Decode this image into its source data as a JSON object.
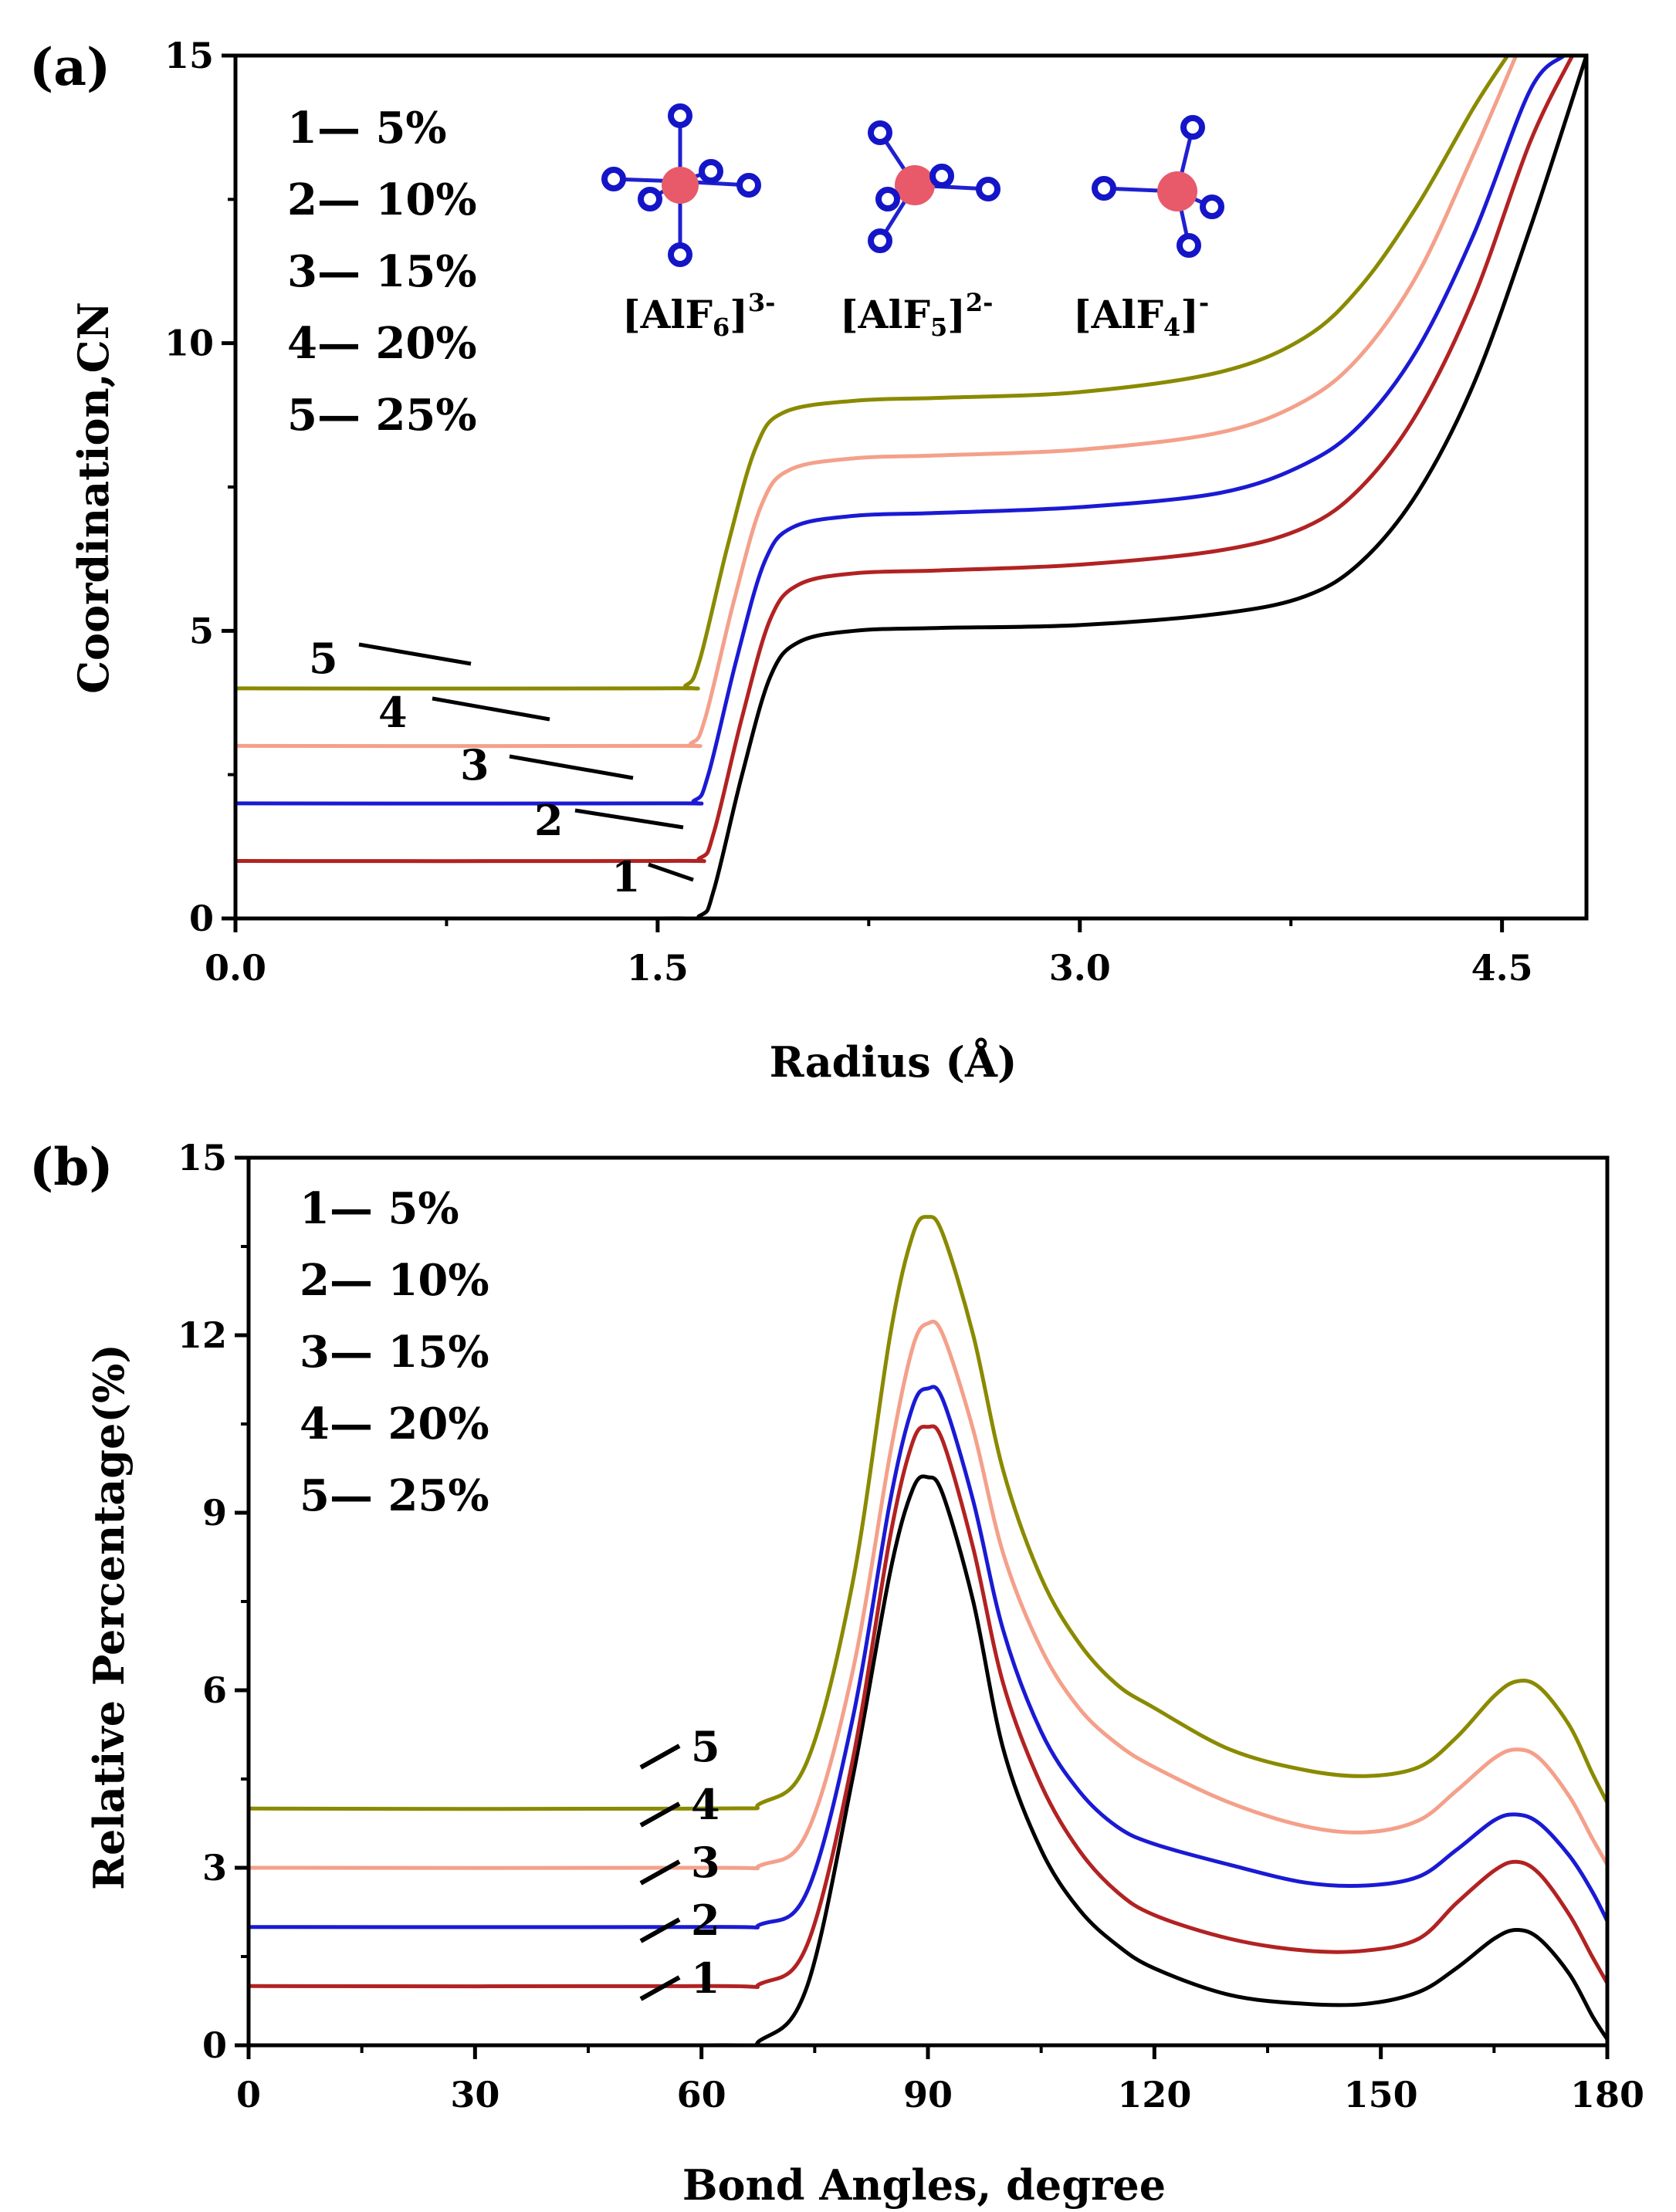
{
  "chart_data": [
    {
      "type": "line",
      "panel": "(a)",
      "xlabel": "Radius (Å)",
      "ylabel": "Coordination,CN",
      "xlim": [
        0,
        4.8
      ],
      "ylim": [
        0,
        15
      ],
      "xticks": [
        "0.0",
        "1.5",
        "3.0",
        "4.5"
      ],
      "xtick_values": [
        0,
        1.5,
        3.0,
        4.5
      ],
      "yticks": [
        "0",
        "5",
        "10",
        "15"
      ],
      "ytick_values": [
        0,
        5,
        10,
        15
      ],
      "legend": [
        "1— 5%",
        "2— 10%",
        "3— 15%",
        "4— 20%",
        "5— 25%"
      ],
      "curve_labels": [
        "1",
        "2",
        "3",
        "4",
        "5"
      ],
      "species": [
        {
          "pre": "[AlF",
          "sub": "6",
          "mid": "]",
          "sup": "3-"
        },
        {
          "pre": "[AlF",
          "sub": "5",
          "mid": "]",
          "sup": "2-"
        },
        {
          "pre": "[AlF",
          "sub": "4",
          "mid": "]",
          "sup": "-"
        }
      ],
      "series": [
        {
          "name": "5%",
          "color": "#000000",
          "offset": 0,
          "x": [
            0,
            1.5,
            1.65,
            1.7,
            1.8,
            1.9,
            2.0,
            2.2,
            2.5,
            3.0,
            3.5,
            3.8,
            4.0,
            4.2,
            4.4,
            4.6,
            4.8
          ],
          "y": [
            0,
            0,
            0.05,
            0.5,
            2.5,
            4.2,
            4.8,
            5.0,
            5.05,
            5.1,
            5.3,
            5.6,
            6.2,
            7.4,
            9.3,
            12.0,
            15.0
          ]
        },
        {
          "name": "10%",
          "color": "#b22222",
          "offset": 1,
          "x": [
            0,
            1.5,
            1.65,
            1.7,
            1.8,
            1.9,
            2.0,
            2.2,
            2.5,
            3.0,
            3.5,
            3.8,
            4.0,
            4.2,
            4.4,
            4.6,
            4.75
          ],
          "y": [
            0,
            0,
            0.05,
            0.5,
            2.5,
            4.2,
            4.8,
            5.0,
            5.05,
            5.15,
            5.4,
            5.8,
            6.5,
            7.8,
            9.8,
            12.5,
            14.0
          ]
        },
        {
          "name": "15%",
          "color": "#1a1ad4",
          "offset": 2,
          "x": [
            0,
            1.5,
            1.63,
            1.68,
            1.78,
            1.88,
            1.98,
            2.2,
            2.5,
            3.0,
            3.5,
            3.8,
            4.0,
            4.2,
            4.4,
            4.6,
            4.72
          ],
          "y": [
            0,
            0,
            0.05,
            0.5,
            2.5,
            4.2,
            4.8,
            5.0,
            5.05,
            5.15,
            5.4,
            5.9,
            6.6,
            7.9,
            9.9,
            12.4,
            13.0
          ]
        },
        {
          "name": "20%",
          "color": "#f4a08a",
          "offset": 3,
          "x": [
            0,
            1.5,
            1.62,
            1.67,
            1.77,
            1.87,
            1.97,
            2.2,
            2.5,
            3.0,
            3.5,
            3.8,
            4.0,
            4.2,
            4.4,
            4.55
          ],
          "y": [
            0,
            0,
            0.05,
            0.5,
            2.5,
            4.2,
            4.8,
            5.0,
            5.05,
            5.15,
            5.45,
            6.0,
            6.8,
            8.2,
            10.3,
            12.0
          ]
        },
        {
          "name": "25%",
          "color": "#8a8a00",
          "offset": 4,
          "x": [
            0,
            1.5,
            1.6,
            1.65,
            1.75,
            1.85,
            1.95,
            2.2,
            2.5,
            3.0,
            3.5,
            3.8,
            4.0,
            4.2,
            4.4,
            4.52
          ],
          "y": [
            0,
            0,
            0.05,
            0.5,
            2.5,
            4.2,
            4.8,
            5.0,
            5.05,
            5.15,
            5.5,
            6.1,
            7.0,
            8.4,
            10.1,
            11.0
          ]
        }
      ]
    },
    {
      "type": "line",
      "panel": "(b)",
      "xlabel": "Bond Angles, degree",
      "ylabel": "Relative Percentage(%)",
      "xlim": [
        0,
        180
      ],
      "ylim": [
        0,
        15
      ],
      "xticks": [
        "0",
        "30",
        "60",
        "90",
        "120",
        "150",
        "180"
      ],
      "xtick_values": [
        0,
        30,
        60,
        90,
        120,
        150,
        180
      ],
      "yticks": [
        "0",
        "3",
        "6",
        "9",
        "12",
        "15"
      ],
      "ytick_values": [
        0,
        3,
        6,
        9,
        12,
        15
      ],
      "legend": [
        "1— 5%",
        "2— 10%",
        "3— 15%",
        "4— 20%",
        "5— 25%"
      ],
      "curve_labels": [
        "1",
        "2",
        "3",
        "4",
        "5"
      ],
      "series": [
        {
          "name": "5%",
          "color": "#000000",
          "offset": 0,
          "x": [
            0,
            60,
            68,
            74,
            80,
            85,
            88,
            90,
            92,
            96,
            100,
            105,
            110,
            115,
            120,
            130,
            140,
            148,
            155,
            160,
            165,
            168,
            171,
            175,
            178,
            180
          ],
          "y": [
            0,
            0,
            0.1,
            1.0,
            4.5,
            8.0,
            9.4,
            9.6,
            9.3,
            7.5,
            5.0,
            3.3,
            2.3,
            1.7,
            1.3,
            0.85,
            0.7,
            0.7,
            0.9,
            1.3,
            1.8,
            1.95,
            1.8,
            1.2,
            0.5,
            0.1
          ]
        },
        {
          "name": "10%",
          "color": "#b22222",
          "offset": 1,
          "x": [
            0,
            60,
            68,
            74,
            80,
            85,
            88,
            90,
            92,
            96,
            100,
            105,
            110,
            115,
            120,
            130,
            140,
            148,
            155,
            160,
            165,
            168,
            171,
            175,
            178,
            180
          ],
          "y": [
            0,
            0,
            0.05,
            0.7,
            3.8,
            7.6,
            9.2,
            9.45,
            9.2,
            7.4,
            5.1,
            3.4,
            2.3,
            1.6,
            1.2,
            0.8,
            0.6,
            0.6,
            0.8,
            1.4,
            1.95,
            2.1,
            1.9,
            1.2,
            0.5,
            0.05
          ]
        },
        {
          "name": "15%",
          "color": "#1a1ad4",
          "offset": 2,
          "x": [
            0,
            60,
            68,
            74,
            80,
            85,
            88,
            90,
            92,
            96,
            100,
            105,
            110,
            115,
            120,
            130,
            140,
            148,
            155,
            160,
            165,
            168,
            171,
            175,
            178,
            180
          ],
          "y": [
            0,
            0,
            0.05,
            0.6,
            3.5,
            7.2,
            8.8,
            9.1,
            8.9,
            7.2,
            5.0,
            3.3,
            2.3,
            1.7,
            1.4,
            1.05,
            0.75,
            0.7,
            0.85,
            1.3,
            1.8,
            1.9,
            1.75,
            1.2,
            0.6,
            0.1
          ]
        },
        {
          "name": "20%",
          "color": "#f4a08a",
          "offset": 3,
          "x": [
            0,
            60,
            68,
            74,
            80,
            85,
            88,
            90,
            92,
            96,
            100,
            105,
            110,
            115,
            120,
            130,
            140,
            148,
            155,
            160,
            165,
            168,
            171,
            175,
            178,
            180
          ],
          "y": [
            0,
            0,
            0.05,
            0.6,
            3.3,
            7.0,
            8.8,
            9.2,
            9.0,
            7.4,
            5.3,
            3.7,
            2.7,
            2.1,
            1.7,
            1.1,
            0.7,
            0.6,
            0.8,
            1.3,
            1.85,
            2.0,
            1.85,
            1.2,
            0.5,
            0.05
          ]
        },
        {
          "name": "25%",
          "color": "#8a8a00",
          "offset": 4,
          "x": [
            0,
            60,
            68,
            74,
            80,
            85,
            88,
            90,
            92,
            96,
            100,
            105,
            110,
            115,
            120,
            130,
            140,
            148,
            155,
            160,
            165,
            168,
            171,
            175,
            178,
            180
          ],
          "y": [
            0,
            0,
            0.1,
            0.8,
            3.8,
            8.0,
            9.7,
            10.0,
            9.7,
            8.0,
            5.7,
            3.9,
            2.8,
            2.1,
            1.7,
            1.0,
            0.65,
            0.55,
            0.7,
            1.2,
            1.9,
            2.15,
            2.05,
            1.4,
            0.6,
            0.1
          ]
        }
      ]
    }
  ]
}
